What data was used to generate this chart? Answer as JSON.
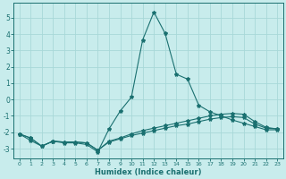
{
  "xlabel": "Humidex (Indice chaleur)",
  "background_color": "#c8ecec",
  "grid_color": "#a8d8d8",
  "line_color": "#1a7070",
  "xlim": [
    -0.5,
    23.5
  ],
  "ylim": [
    -3.6,
    5.9
  ],
  "yticks": [
    -3,
    -2,
    -1,
    0,
    1,
    2,
    3,
    4,
    5
  ],
  "xticks": [
    0,
    1,
    2,
    3,
    4,
    5,
    6,
    7,
    8,
    9,
    10,
    11,
    12,
    13,
    14,
    15,
    16,
    17,
    18,
    19,
    20,
    21,
    22,
    23
  ],
  "series": [
    {
      "x": [
        0,
        1,
        2,
        3,
        4,
        5,
        6,
        7,
        8,
        9,
        10,
        11,
        12,
        13,
        14,
        15,
        16,
        17,
        18,
        19,
        20,
        21,
        22,
        23
      ],
      "y": [
        -2.1,
        -2.5,
        -2.85,
        -2.55,
        -2.65,
        -2.65,
        -2.75,
        -3.2,
        -1.8,
        -0.7,
        0.15,
        3.65,
        5.35,
        4.05,
        1.55,
        1.25,
        -0.35,
        -0.75,
        -1.0,
        -1.25,
        -1.45,
        -1.65,
        -1.85,
        -1.85
      ]
    },
    {
      "x": [
        0,
        1,
        2,
        3,
        4,
        5,
        6,
        7,
        8,
        9,
        10,
        11,
        12,
        13,
        14,
        15,
        16,
        17,
        18,
        19,
        20,
        21,
        22,
        23
      ],
      "y": [
        -2.1,
        -2.35,
        -2.85,
        -2.55,
        -2.6,
        -2.6,
        -2.65,
        -3.1,
        -2.55,
        -2.35,
        -2.1,
        -1.9,
        -1.75,
        -1.6,
        -1.45,
        -1.3,
        -1.15,
        -1.0,
        -0.9,
        -0.85,
        -0.9,
        -1.35,
        -1.7,
        -1.8
      ]
    },
    {
      "x": [
        0,
        1,
        2,
        3,
        4,
        5,
        6,
        7,
        8,
        9,
        10,
        11,
        12,
        13,
        14,
        15,
        16,
        17,
        18,
        19,
        20,
        21,
        22,
        23
      ],
      "y": [
        -2.1,
        -2.35,
        -2.85,
        -2.55,
        -2.6,
        -2.6,
        -2.65,
        -3.1,
        -2.6,
        -2.4,
        -2.2,
        -2.05,
        -1.9,
        -1.75,
        -1.6,
        -1.5,
        -1.35,
        -1.2,
        -1.1,
        -1.05,
        -1.1,
        -1.5,
        -1.75,
        -1.8
      ]
    }
  ]
}
